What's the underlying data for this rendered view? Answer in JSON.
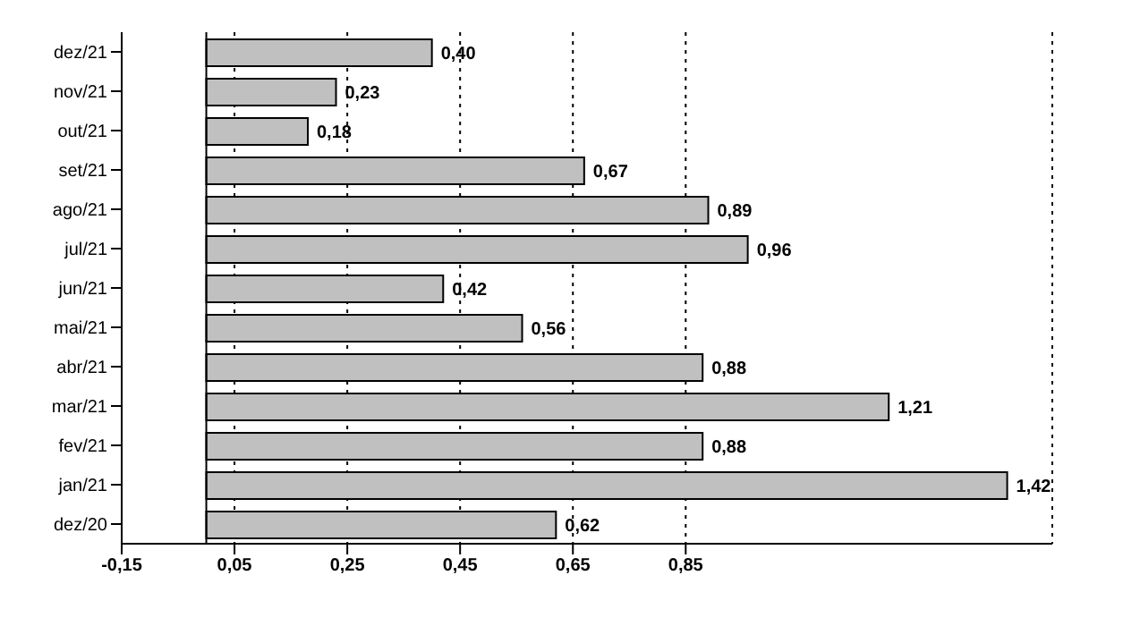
{
  "chart_data": {
    "type": "bar",
    "orientation": "horizontal",
    "categories": [
      "dez/21",
      "nov/21",
      "out/21",
      "set/21",
      "ago/21",
      "jul/21",
      "jun/21",
      "mai/21",
      "abr/21",
      "mar/21",
      "fev/21",
      "jan/21",
      "dez/20"
    ],
    "values": [
      0.4,
      0.23,
      0.18,
      0.67,
      0.89,
      0.96,
      0.42,
      0.56,
      0.88,
      1.21,
      0.88,
      1.42,
      0.62
    ],
    "value_labels": [
      "0,40",
      "0,23",
      "0,18",
      "0,67",
      "0,89",
      "0,96",
      "0,42",
      "0,56",
      "0,88",
      "1,21",
      "0,88",
      "1,42",
      "0,62"
    ],
    "color": "#c0c0c0",
    "xlim": [
      -0.15,
      1.5
    ],
    "xticks": [
      {
        "value": -0.15,
        "label": "-0,15"
      },
      {
        "value": 0.05,
        "label": "0,05"
      },
      {
        "value": 0.25,
        "label": "0,25"
      },
      {
        "value": 0.45,
        "label": "0,45"
      },
      {
        "value": 0.65,
        "label": "0,65"
      },
      {
        "value": 0.85,
        "label": "0,85"
      }
    ],
    "grid": "x"
  }
}
